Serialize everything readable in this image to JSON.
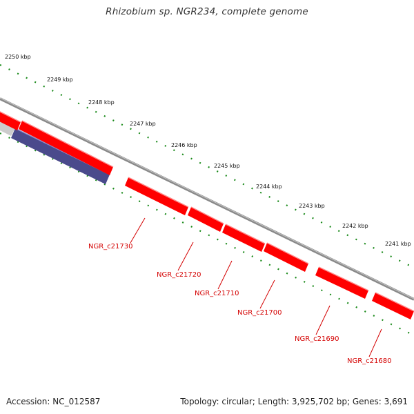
{
  "title": "Rhizobium sp. NGR234, complete genome",
  "footer": {
    "accession": "Accession: NC_012587",
    "summary": "Topology: circular; Length: 3,925,702 bp; Genes: 3,691"
  },
  "colors": {
    "forward_gene": "#ff0000",
    "reverse_gene": "#4a4a8c",
    "backbone": "#8a8a8a",
    "ticks": "#1a8a1a",
    "gene_label": "#d40000"
  },
  "scale_kbp": [
    "2250 kbp",
    "2249 kbp",
    "2248 kbp",
    "2247 kbp",
    "2246 kbp",
    "2245 kbp",
    "2244 kbp",
    "2243 kbp",
    "2242 kbp",
    "2241 kbp"
  ],
  "genes": [
    "NGR_c21730",
    "NGR_c21720",
    "NGR_c21710",
    "NGR_c21700",
    "NGR_c21690",
    "NGR_c21680"
  ]
}
